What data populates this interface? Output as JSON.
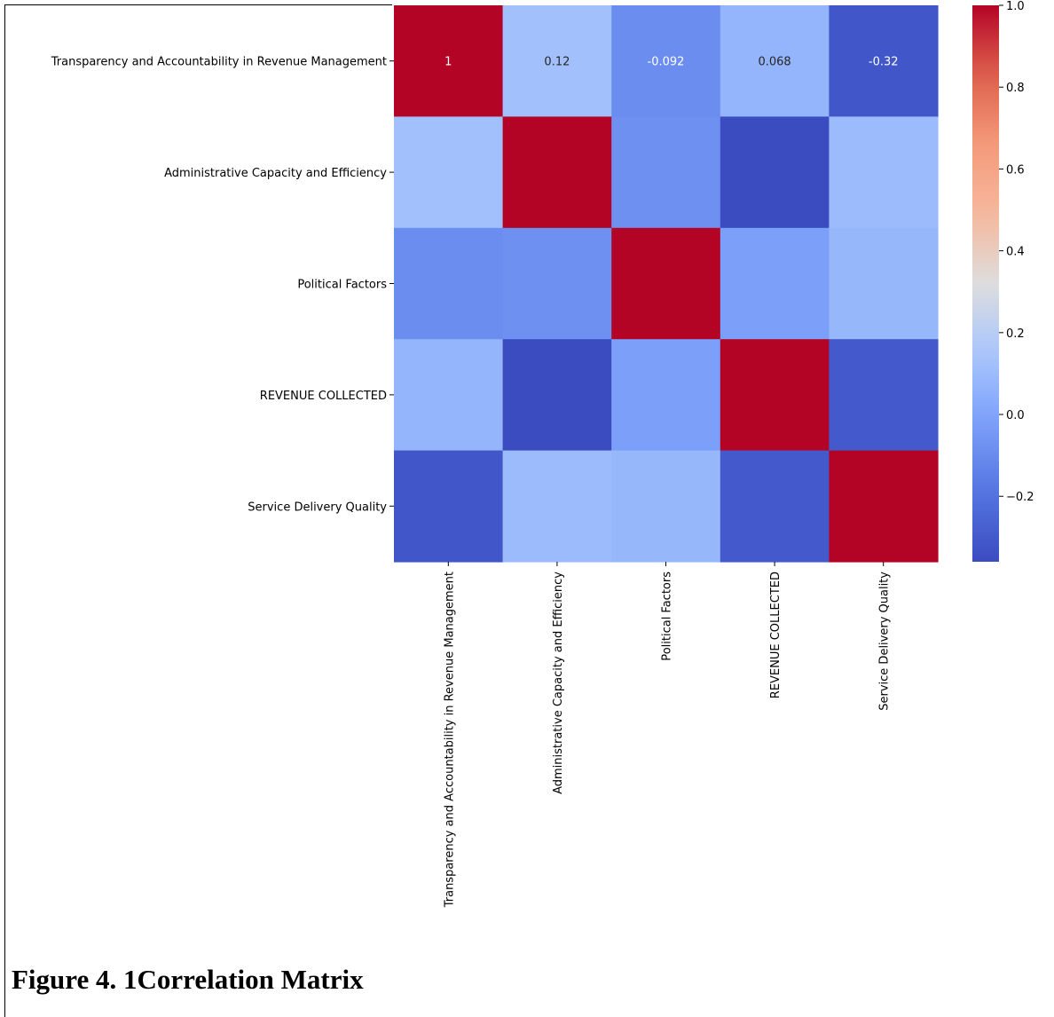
{
  "caption": "Figure 4. 1Correlation Matrix",
  "chart_data": {
    "type": "heatmap",
    "colormap": "coolwarm",
    "row_labels": [
      "Transparency and Accountability in Revenue Management",
      "Administrative Capacity and Efficiency",
      "Political Factors",
      "REVENUE COLLECTED",
      "Service Delivery Quality"
    ],
    "col_labels": [
      "Transparency and Accountability in Revenue Management",
      "Administrative Capacity and Efficiency",
      "Political Factors",
      "REVENUE COLLECTED",
      "Service Delivery Quality"
    ],
    "values": [
      [
        1.0,
        0.12,
        -0.092,
        0.068,
        -0.32
      ],
      [
        0.12,
        1.0,
        -0.08,
        -0.36,
        0.1
      ],
      [
        -0.092,
        -0.08,
        1.0,
        -0.02,
        0.08
      ],
      [
        0.068,
        -0.36,
        -0.02,
        1.0,
        -0.3
      ],
      [
        -0.32,
        0.1,
        0.08,
        -0.3,
        1.0
      ]
    ],
    "annotations": [
      [
        "1",
        "0.12",
        "-0.092",
        "0.068",
        "-0.32"
      ]
    ],
    "colorbar": {
      "vmin": -0.36,
      "vmax": 1.0,
      "ticks": [
        -0.2,
        0.0,
        0.2,
        0.4,
        0.6,
        0.8,
        1.0
      ],
      "tick_labels": [
        "−0.2",
        "0.0",
        "0.2",
        "0.4",
        "0.6",
        "0.8",
        "1.0"
      ]
    }
  }
}
